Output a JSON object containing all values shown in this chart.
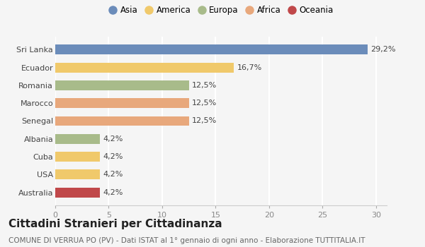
{
  "categories": [
    "Sri Lanka",
    "Ecuador",
    "Romania",
    "Marocco",
    "Senegal",
    "Albania",
    "Cuba",
    "USA",
    "Australia"
  ],
  "values": [
    29.2,
    16.7,
    12.5,
    12.5,
    12.5,
    4.2,
    4.2,
    4.2,
    4.2
  ],
  "labels": [
    "29,2%",
    "16,7%",
    "12,5%",
    "12,5%",
    "12,5%",
    "4,2%",
    "4,2%",
    "4,2%",
    "4,2%"
  ],
  "colors": [
    "#6b8cba",
    "#f0c96b",
    "#a8bb8a",
    "#e8a87c",
    "#e8a87c",
    "#a8bb8a",
    "#f0c96b",
    "#f0c96b",
    "#c0484a"
  ],
  "legend": [
    {
      "label": "Asia",
      "color": "#6b8cba"
    },
    {
      "label": "America",
      "color": "#f0c96b"
    },
    {
      "label": "Europa",
      "color": "#a8bb8a"
    },
    {
      "label": "Africa",
      "color": "#e8a87c"
    },
    {
      "label": "Oceania",
      "color": "#c0484a"
    }
  ],
  "xlim": [
    0,
    31
  ],
  "xticks": [
    0,
    5,
    10,
    15,
    20,
    25,
    30
  ],
  "title": "Cittadini Stranieri per Cittadinanza",
  "subtitle": "COMUNE DI VERRUA PO (PV) - Dati ISTAT al 1° gennaio di ogni anno - Elaborazione TUTTITALIA.IT",
  "background_color": "#f5f5f5",
  "bar_height": 0.55,
  "title_fontsize": 11,
  "subtitle_fontsize": 7.5,
  "label_fontsize": 8,
  "tick_fontsize": 8
}
